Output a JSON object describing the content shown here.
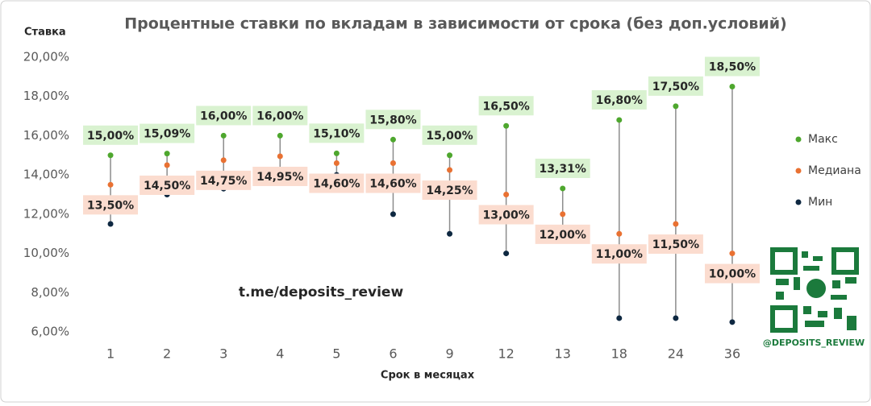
{
  "chart_data": {
    "type": "range",
    "title": "Процентные ставки по вкладам в зависимости от срока (без доп.условий)",
    "y_label": "Ставка",
    "x_label": "Срок в месяцах",
    "annotations": [
      "t.me/deposits_review",
      "@DEPOSITS_REVIEW"
    ],
    "categories": [
      "1",
      "2",
      "3",
      "4",
      "5",
      "6",
      "9",
      "12",
      "13",
      "18",
      "24",
      "36"
    ],
    "series": [
      {
        "name": "Макс",
        "color": "#4ea72e",
        "label_bg": "#d9f2d0",
        "values": [
          15.0,
          15.09,
          16.0,
          16.0,
          15.1,
          15.8,
          15.0,
          16.5,
          13.31,
          16.8,
          17.5,
          18.5
        ],
        "value_labels": [
          "15,00%",
          "15,09%",
          "16,00%",
          "16,00%",
          "15,10%",
          "15,80%",
          "15,00%",
          "16,50%",
          "13,31%",
          "16,80%",
          "17,50%",
          "18,50%"
        ]
      },
      {
        "name": "Медиана",
        "color": "#e97132",
        "label_bg": "#fbdccf",
        "values": [
          13.5,
          14.5,
          14.75,
          14.95,
          14.6,
          14.6,
          14.25,
          13.0,
          12.0,
          11.0,
          11.5,
          10.0
        ],
        "value_labels": [
          "13,50%",
          "14,50%",
          "14,75%",
          "14,95%",
          "14,60%",
          "14,60%",
          "14,25%",
          "13,00%",
          "12,00%",
          "11,00%",
          "11,50%",
          "10,00%"
        ]
      },
      {
        "name": "Мин",
        "color": "#0e2841",
        "values": [
          11.5,
          13.0,
          13.3,
          13.9,
          14.0,
          12.0,
          11.0,
          10.0,
          11.0,
          6.7,
          6.7,
          6.5
        ]
      }
    ],
    "ylim": [
      6,
      20
    ],
    "yticks": [
      {
        "value": 6,
        "label": "6,00%"
      },
      {
        "value": 8,
        "label": "8,00%"
      },
      {
        "value": 10,
        "label": "10,00%"
      },
      {
        "value": 12,
        "label": "12,00%"
      },
      {
        "value": 14,
        "label": "14,00%"
      },
      {
        "value": 16,
        "label": "16,00%"
      },
      {
        "value": 18,
        "label": "18,00%"
      },
      {
        "value": 20,
        "label": "20,00%"
      }
    ],
    "legend": "right"
  }
}
